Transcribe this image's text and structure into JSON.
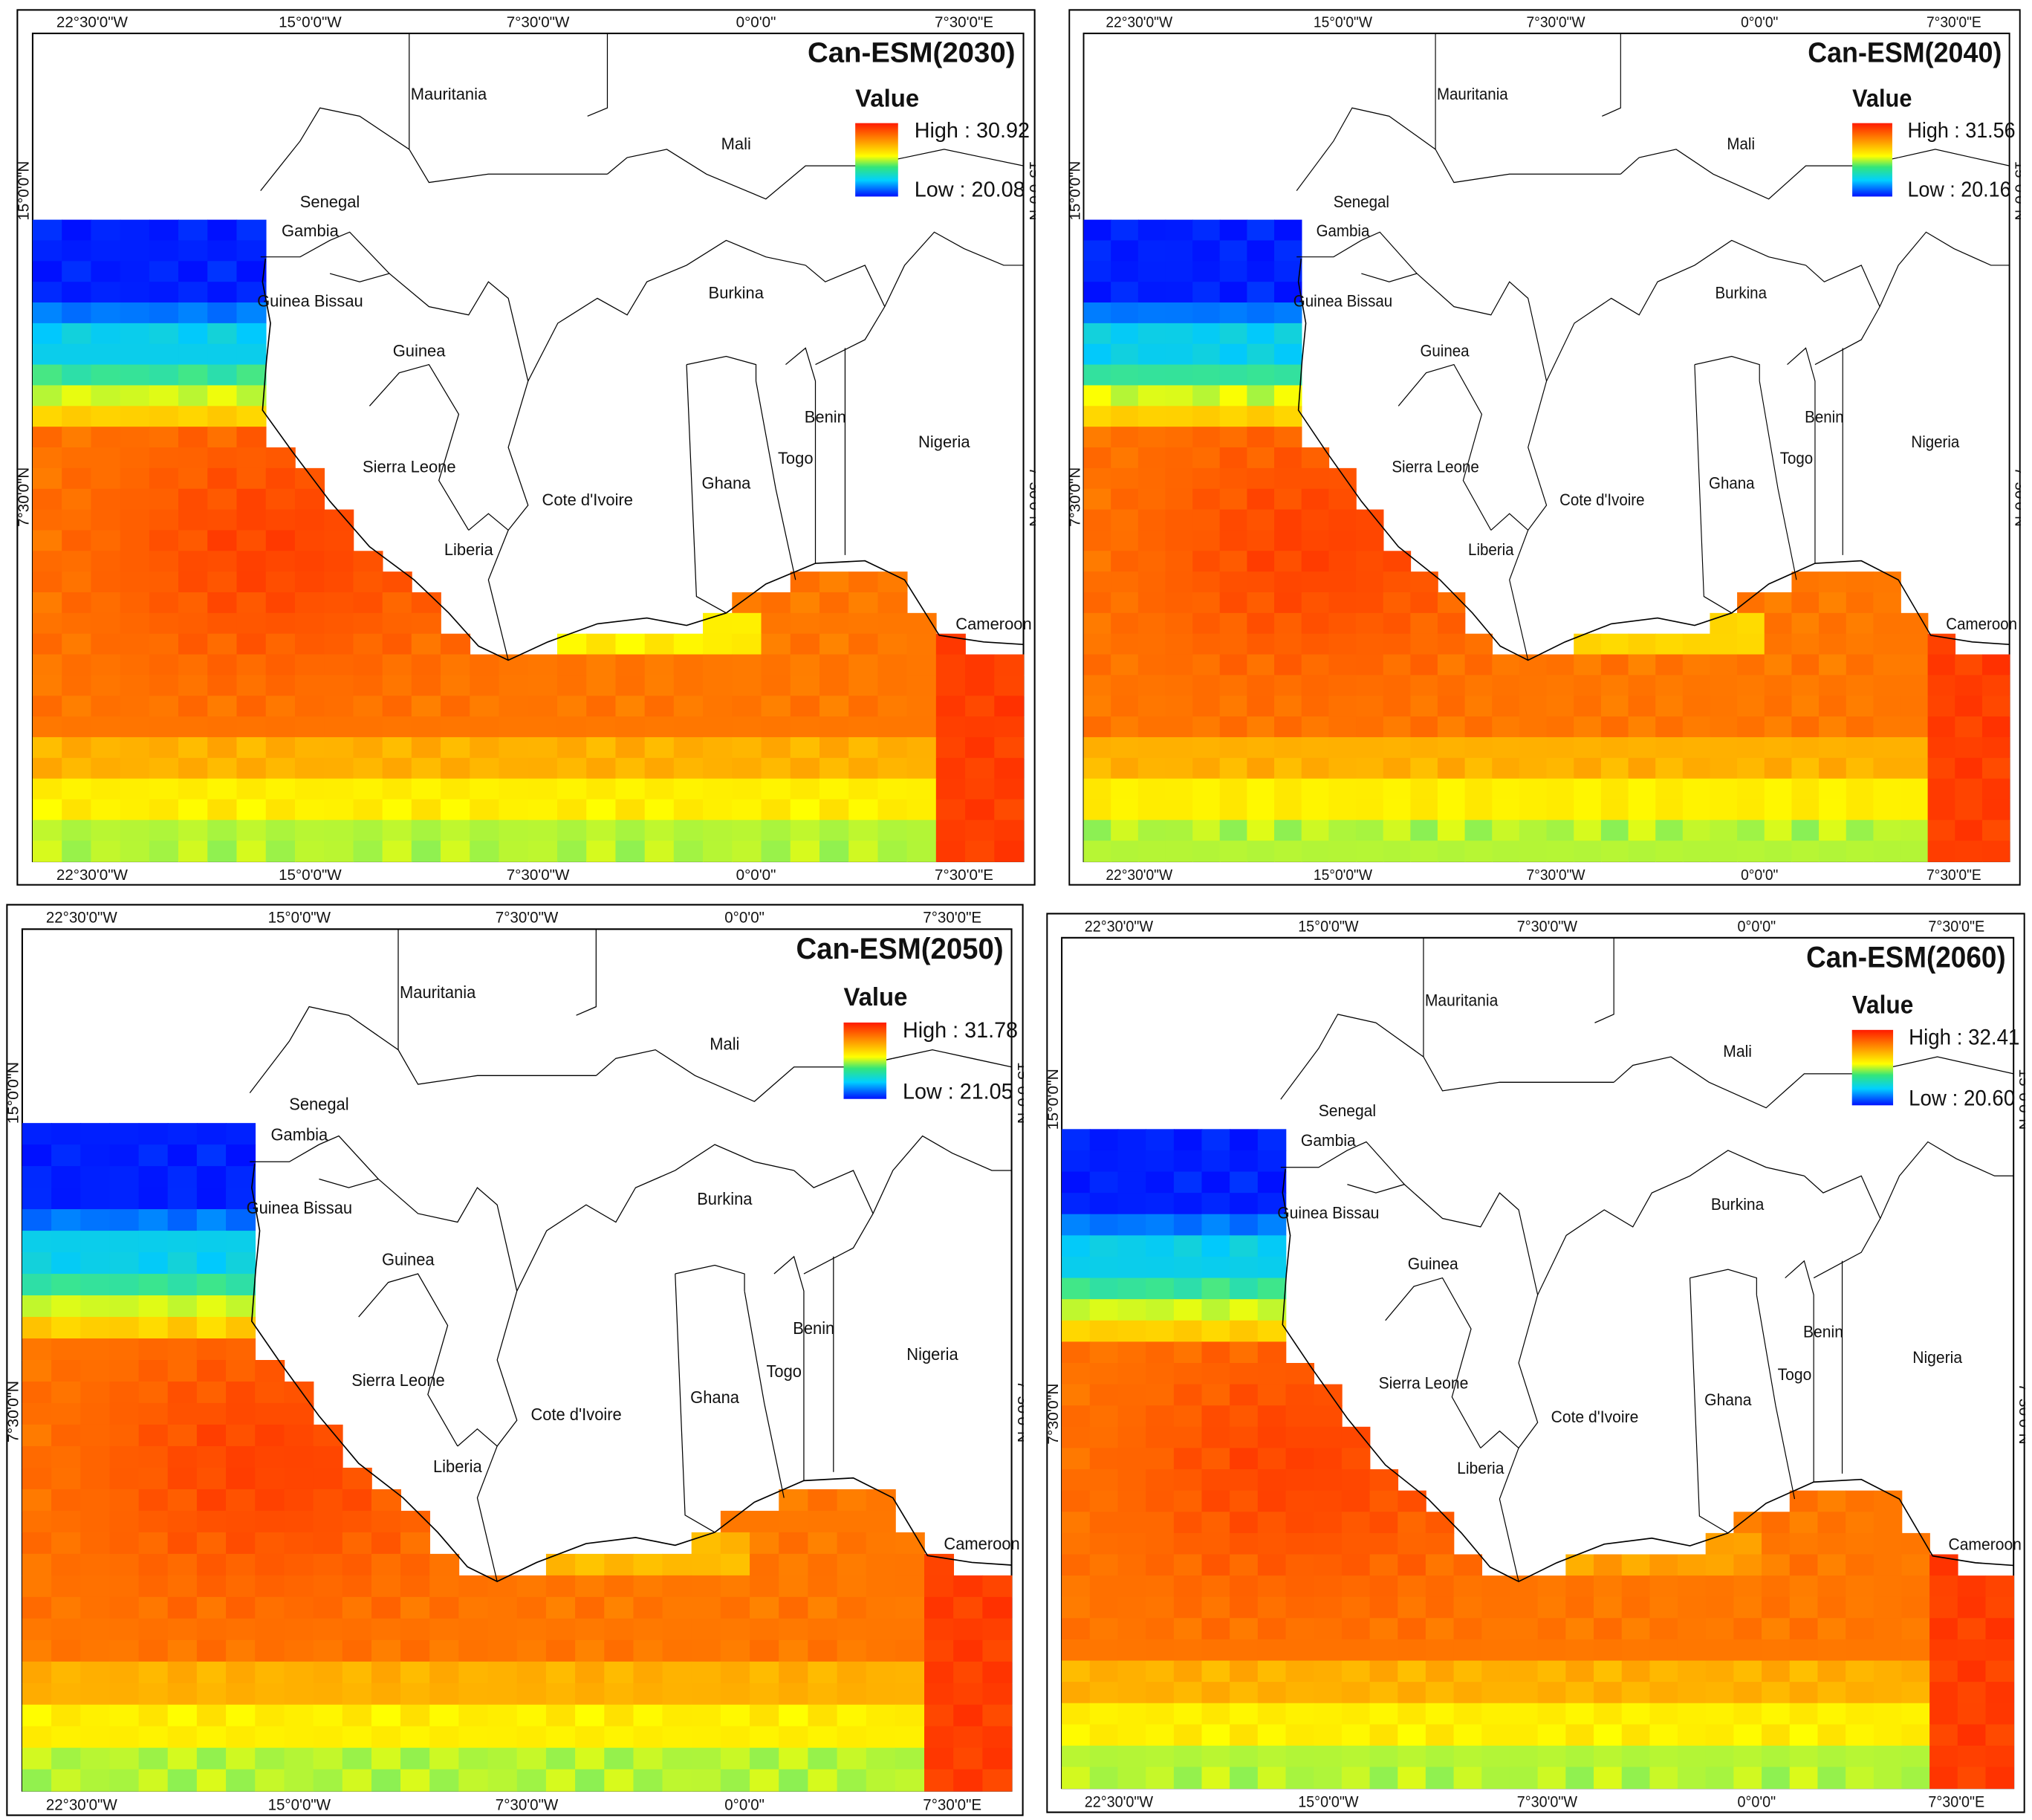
{
  "figure": {
    "description_note": "Four-panel SST projection maps for West Africa",
    "axis_ticks": {
      "lon": [
        "22°30'0\"W",
        "15°0'0\"W",
        "7°30'0\"W",
        "0°0'0\"",
        "7°30'0\"E"
      ],
      "lat": [
        "15°0'0\"N",
        "7°30'0\"N"
      ]
    },
    "countries": [
      "Mauritania",
      "Mali",
      "Senegal",
      "Gambia",
      "Guinea Bissau",
      "Guinea",
      "Sierra Leone",
      "Liberia",
      "Cote d'Ivoire",
      "Ghana",
      "Togo",
      "Benin",
      "Burkina",
      "Nigeria",
      "Cameroon"
    ],
    "legend_title": "Value",
    "high_prefix": "High : ",
    "low_prefix": "Low : ",
    "colors": {
      "ocean_high": "#ff2a00",
      "ocean_mid": "#ffff00",
      "ocean_low": "#0010ff",
      "land": "#ffffff",
      "border": "#000000"
    }
  },
  "panels": [
    {
      "title": "Can-ESM(2030)",
      "high": "30.92",
      "low": "20.08"
    },
    {
      "title": "Can-ESM(2040)",
      "high": "31.56",
      "low": "20.16"
    },
    {
      "title": "Can-ESM(2050)",
      "high": "31.78",
      "low": "21.05"
    },
    {
      "title": "Can-ESM(2060)",
      "high": "32.41",
      "low": "20.60"
    }
  ]
}
